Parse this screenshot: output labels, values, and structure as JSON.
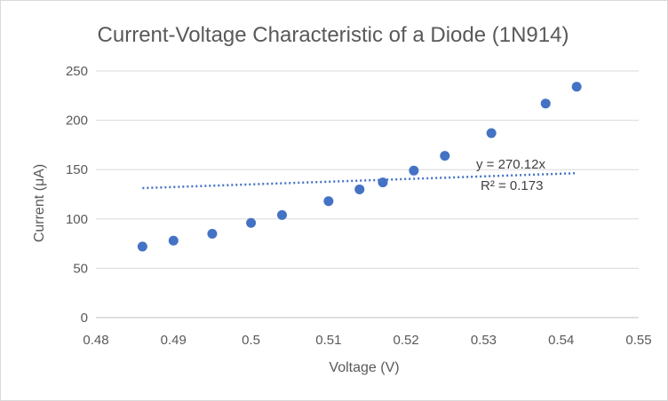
{
  "chart_data": {
    "type": "scatter",
    "title": "Current-Voltage Characteristic of a Diode (1N914)",
    "xlabel": "Voltage (V)",
    "ylabel": "Current (μA)",
    "xlim": [
      0.48,
      0.55
    ],
    "ylim": [
      0,
      250
    ],
    "x_ticks": [
      "0.48",
      "0.49",
      "0.5",
      "0.51",
      "0.52",
      "0.53",
      "0.54",
      "0.55"
    ],
    "y_ticks": [
      "0",
      "50",
      "100",
      "150",
      "200",
      "250"
    ],
    "grid": "horizontal",
    "legend": "none",
    "marker_color": "#4472C4",
    "series": [
      {
        "x": [
          0.486,
          0.49,
          0.495,
          0.5,
          0.504,
          0.51,
          0.514,
          0.517,
          0.521,
          0.525,
          0.531,
          0.538,
          0.542
        ],
        "y": [
          72,
          78,
          85,
          96,
          104,
          118,
          130,
          137,
          149,
          164,
          187,
          217,
          234
        ]
      }
    ],
    "trendline": {
      "type": "linear-through-origin",
      "slope": 270.12,
      "x_range": [
        0.486,
        0.542
      ],
      "style": "dotted",
      "equation": "y = 270.12x",
      "r_squared": "R² = 0.173"
    }
  }
}
